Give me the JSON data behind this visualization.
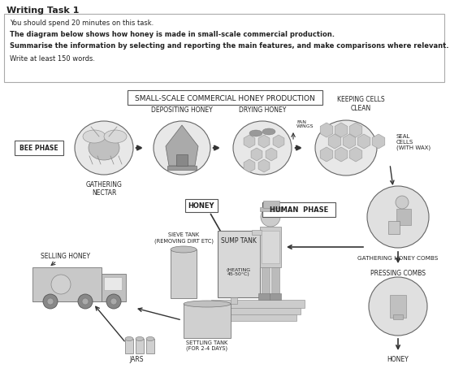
{
  "title": "Writing Task 1",
  "line1": "You should spend 20 minutes on this task.",
  "line2": "The diagram below shows how honey is made in small-scale commercial production.",
  "line3": "Summarise the information by selecting and reporting the main features, and make comparisons where relevant.",
  "line4": "Write at least 150 words.",
  "diagram_title": "SMALL-SCALE COMMERCIAL HONEY PRODUCTION",
  "bee_phase": "BEE PHASE",
  "gathering_nectar": "GATHERING\nNECTAR",
  "depositing_honey": "DEPOSITING HONEY",
  "drying_honey": "DRYING HONEY",
  "keeping_cells": "KEEPING CELLS\nCLEAN",
  "fan_wings": "FAN\nWINGS",
  "seal_cells": "SEAL\nCELLS\n(WITH WAX)",
  "human_phase": "HUMAN  PHASE",
  "honey_label": "HONEY",
  "sump_tank": "SUMP TANK",
  "heating": "(HEATING\n45-50°C)",
  "sieve_tank": "SIEVE TANK\n(REMOVING DIRT ETC)",
  "settling_tank": "SETTLING TANK\n(FOR 2-4 DAYS)",
  "jars": "JARS",
  "selling_honey": "SELLING HONEY",
  "gathering_combs": "GATHERING HONEY COMBS",
  "pressing_combs": "PRESSING COMBS",
  "honey_bottom": "HONEY",
  "bg": "#ffffff",
  "tc": "#222222",
  "lc": "#666666"
}
